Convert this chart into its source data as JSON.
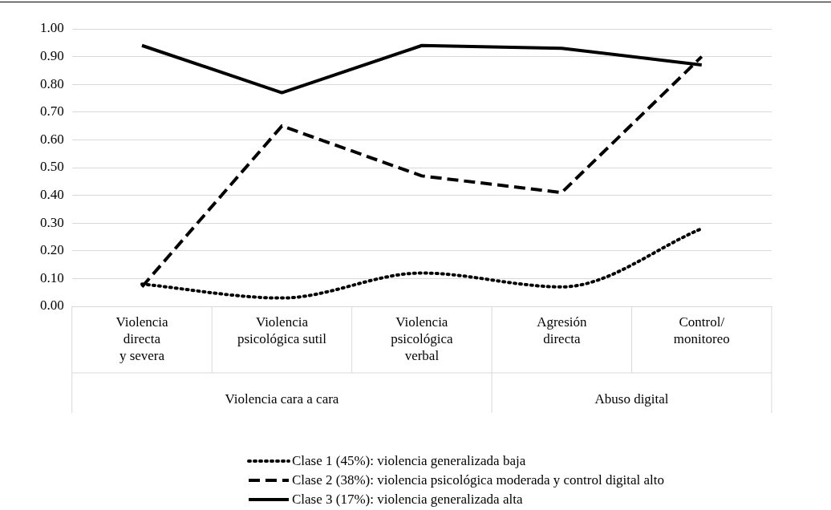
{
  "chart_data": {
    "type": "line",
    "categories": [
      "Violencia\ndirecta\ny severa",
      "Violencia\npsicológica sutil",
      "Violencia\npsicológica\nverbal",
      "Agresión\ndirecta",
      "Control/\nmonitoreo"
    ],
    "series": [
      {
        "name": "Clase 1 (45%): violencia generalizada baja",
        "color": "#000000",
        "line_style": "dotted",
        "values": [
          0.08,
          0.03,
          0.12,
          0.07,
          0.28
        ]
      },
      {
        "name": "Clase 2 (38%): violencia psicológica moderada y control digital alto",
        "color": "#000000",
        "line_style": "dashed",
        "values": [
          0.07,
          0.65,
          0.47,
          0.41,
          0.9
        ]
      },
      {
        "name": "Clase 3 (17%): violencia generalizada alta",
        "color": "#000000",
        "line_style": "solid",
        "values": [
          0.94,
          0.77,
          0.94,
          0.93,
          0.87
        ]
      }
    ],
    "annotations": [
      "Violencia cara a cara",
      "Abuso digital"
    ],
    "ylim": [
      0,
      1
    ],
    "yticks": [
      {
        "value": 0,
        "label": "0.00"
      },
      {
        "value": 0.1,
        "label": "0.10"
      },
      {
        "value": 0.2,
        "label": "0.20"
      },
      {
        "value": 0.3,
        "label": "0.30"
      },
      {
        "value": 0.4,
        "label": "0.40"
      },
      {
        "value": 0.5,
        "label": "0.50"
      },
      {
        "value": 0.6,
        "label": "0.60"
      },
      {
        "value": 0.7,
        "label": "0.70"
      },
      {
        "value": 0.8,
        "label": "0.80"
      },
      {
        "value": 0.9,
        "label": "0.90"
      },
      {
        "value": 1,
        "label": "1.00"
      }
    ],
    "grid": "y",
    "legend": "bottom",
    "marker": "none"
  }
}
